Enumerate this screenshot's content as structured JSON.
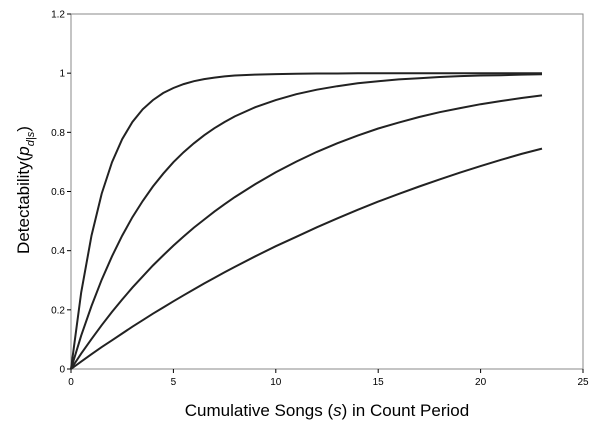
{
  "chart_data": {
    "type": "line",
    "title": "",
    "xlabel": {
      "prefix": "Cumulative Songs (",
      "italic": "s",
      "suffix": ") in Count Period"
    },
    "ylabel": {
      "prefix": "Detectability(",
      "italic": "p",
      "subscript": "d|s",
      "suffix": ")"
    },
    "xlim": [
      0,
      25
    ],
    "ylim": [
      0,
      1.2
    ],
    "xticks": [
      "0",
      "5",
      "10",
      "15",
      "20",
      "25"
    ],
    "yticks": [
      "0",
      "0.2",
      "0.4",
      "0.6",
      "0.8",
      "1",
      "1.2"
    ],
    "grid": false,
    "legend": "none",
    "line_color": "#222222",
    "x": [
      0,
      0.5,
      1,
      1.5,
      2,
      2.5,
      3,
      3.5,
      4,
      4.5,
      5,
      5.5,
      6,
      6.5,
      7,
      7.5,
      8,
      9,
      10,
      11,
      12,
      13,
      14,
      15,
      16,
      17,
      18,
      19,
      20,
      21,
      22,
      23
    ],
    "series": [
      {
        "values": [
          0,
          0.259,
          0.451,
          0.593,
          0.699,
          0.777,
          0.835,
          0.878,
          0.909,
          0.933,
          0.95,
          0.963,
          0.973,
          0.98,
          0.985,
          0.989,
          0.992,
          0.995,
          0.997,
          0.998,
          0.999,
          0.999,
          1.0,
          1.0,
          1.0,
          1.0,
          1.0,
          1.0,
          1.0,
          1.0,
          1.0,
          1.0
        ]
      },
      {
        "values": [
          0,
          0.113,
          0.213,
          0.302,
          0.381,
          0.451,
          0.513,
          0.568,
          0.617,
          0.66,
          0.699,
          0.733,
          0.763,
          0.79,
          0.814,
          0.835,
          0.854,
          0.885,
          0.909,
          0.929,
          0.944,
          0.956,
          0.966,
          0.973,
          0.979,
          0.983,
          0.987,
          0.99,
          0.992,
          0.993,
          0.995,
          0.996
        ]
      },
      {
        "values": [
          0,
          0.052,
          0.101,
          0.148,
          0.193,
          0.235,
          0.275,
          0.313,
          0.35,
          0.384,
          0.417,
          0.448,
          0.478,
          0.505,
          0.532,
          0.557,
          0.581,
          0.625,
          0.665,
          0.701,
          0.734,
          0.763,
          0.789,
          0.813,
          0.833,
          0.852,
          0.868,
          0.882,
          0.895,
          0.906,
          0.916,
          0.925
        ]
      },
      {
        "values": [
          0,
          0.025,
          0.05,
          0.074,
          0.097,
          0.12,
          0.143,
          0.165,
          0.187,
          0.208,
          0.229,
          0.249,
          0.269,
          0.289,
          0.308,
          0.327,
          0.345,
          0.381,
          0.415,
          0.447,
          0.479,
          0.509,
          0.538,
          0.566,
          0.592,
          0.617,
          0.641,
          0.664,
          0.686,
          0.707,
          0.727,
          0.745
        ]
      }
    ]
  }
}
